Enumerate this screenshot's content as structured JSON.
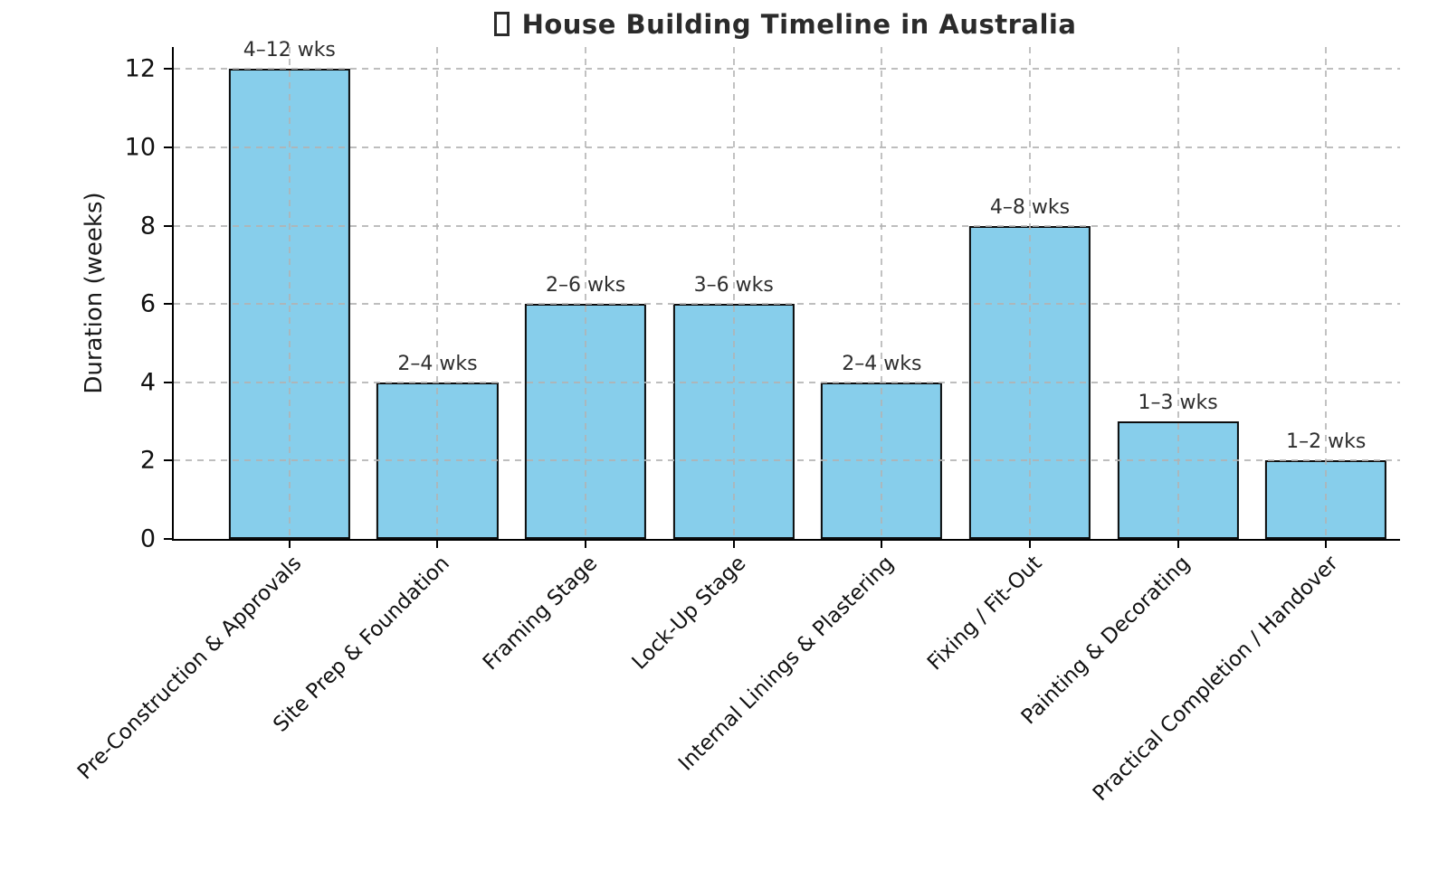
{
  "chart_data": {
    "type": "bar",
    "title": "House Building Timeline in Australia",
    "title_has_missing_emoji_glyph": "tofu-box-before-title",
    "xlabel": "",
    "ylabel": "Duration (weeks)",
    "categories": [
      "Pre-Construction & Approvals",
      "Site Prep & Foundation",
      "Framing Stage",
      "Lock-Up Stage",
      "Internal Linings & Plastering",
      "Fixing / Fit-Out",
      "Painting & Decorating",
      "Practical Completion / Handover"
    ],
    "values": [
      12,
      4,
      6,
      6,
      4,
      8,
      3,
      2
    ],
    "bar_labels": [
      "4–12 wks",
      "2–4 wks",
      "2–6 wks",
      "3–6 wks",
      "2–4 wks",
      "4–8 wks",
      "1–3 wks",
      "1–2 wks"
    ],
    "yticks": [
      0,
      2,
      4,
      6,
      8,
      10,
      12
    ],
    "ylim": [
      0,
      12.6
    ],
    "grid": "dashed, horizontal and vertical, drawn over bars",
    "legend": "none",
    "x_tick_rotation_deg": 45,
    "colors": {
      "bar_fill": "#87CEEB",
      "bar_edge": "#0d0d0d",
      "grid": "#b2b2b2",
      "axis": "#000000",
      "title_text": "#2b2b2b",
      "tick_text": "#111111",
      "value_label_text": "#2e2e2e",
      "background": "#ffffff"
    }
  }
}
